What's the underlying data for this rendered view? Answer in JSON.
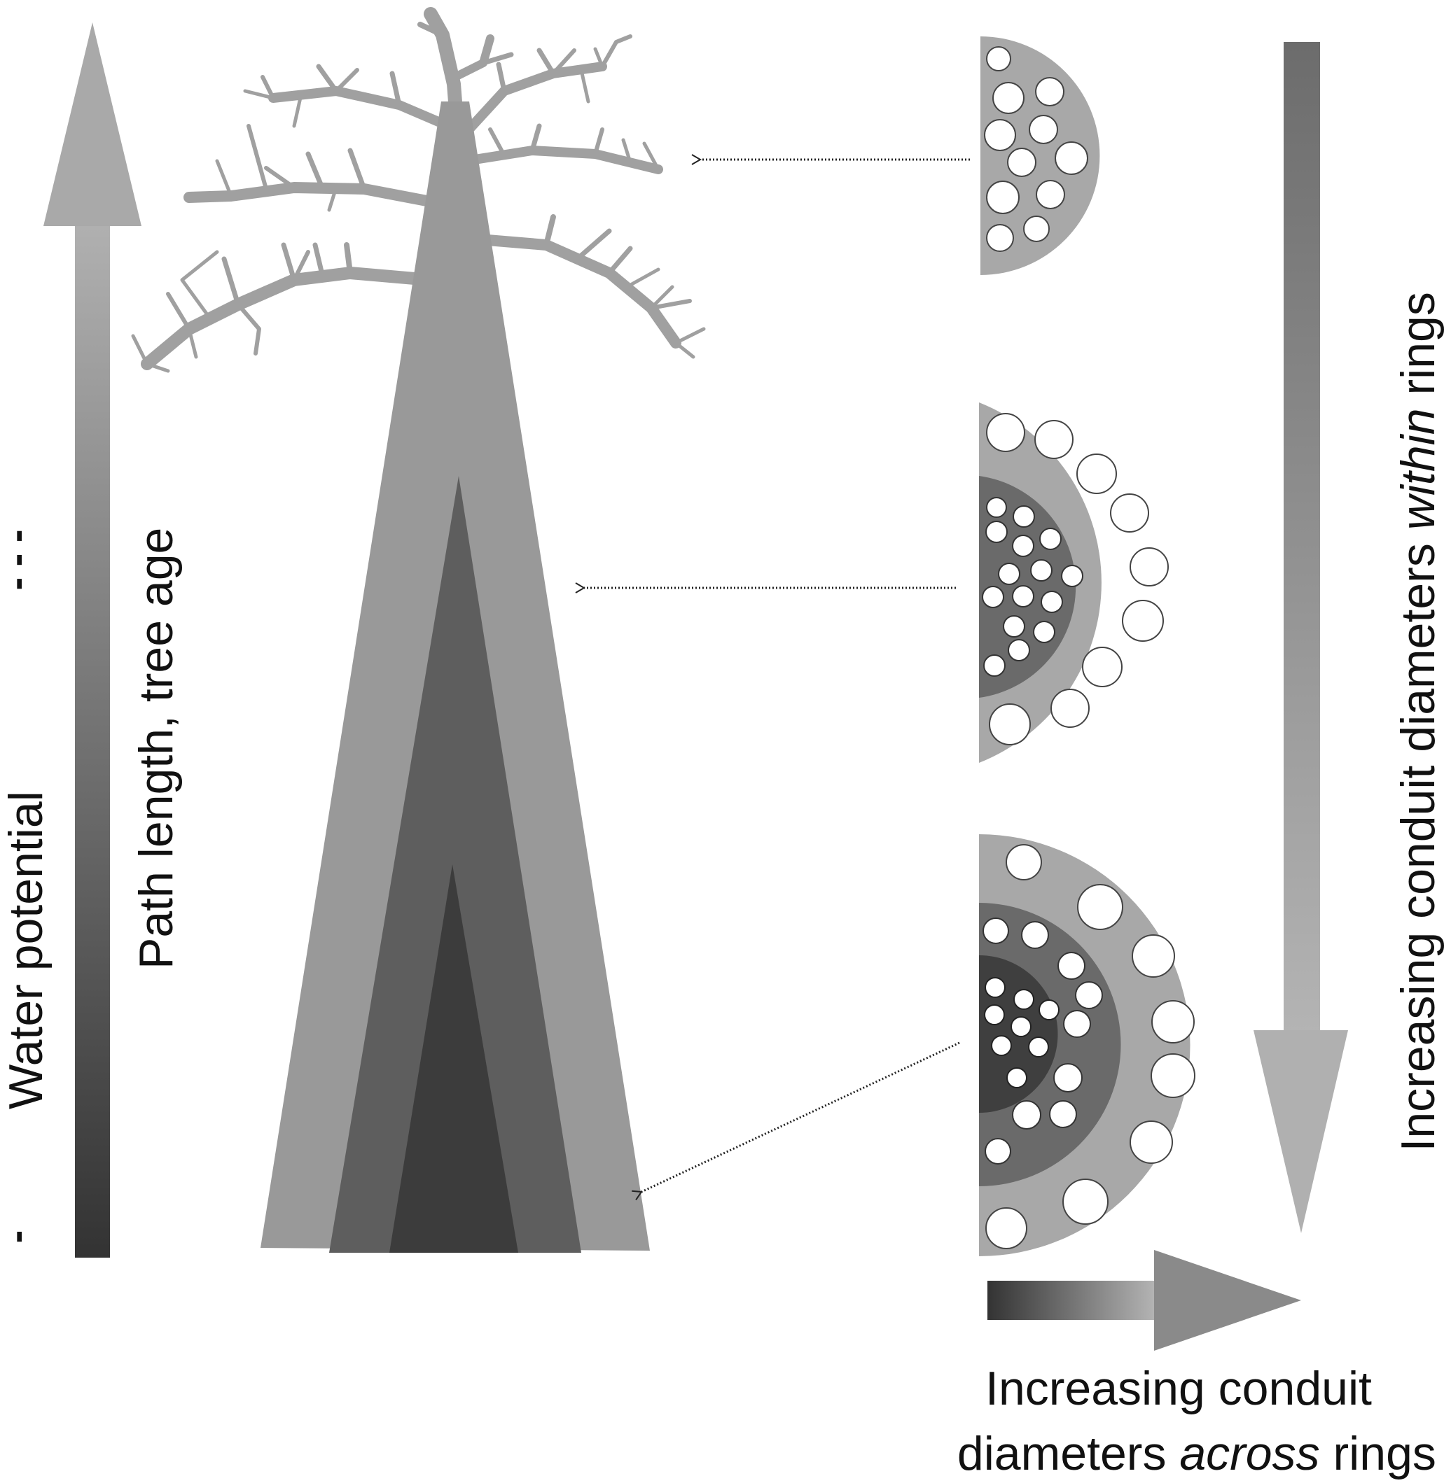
{
  "labels": {
    "water_potential": "Water potential",
    "path_length": "Path length, tree age",
    "minus_top": "- - -",
    "minus_bottom": "-",
    "within_prefix": "Increasing conduit diameters ",
    "within_em": "within",
    "within_suffix": " rings",
    "across_line1": "Increasing conduit",
    "across_line2_prefix": "diameters ",
    "across_line2_em": "across",
    "across_line2_suffix": " rings"
  },
  "colors": {
    "outer_ring": "#a8a8a8",
    "tree_outer": "#999999",
    "middle_ring": "#6a6a6a",
    "tree_middle": "#5e5e5e",
    "inner_ring": "#3f3f3f",
    "tree_inner": "#3c3c3c",
    "branches": "#a0a0a0",
    "conduit": "#ffffff"
  },
  "cross_sections": [
    {
      "position": "crown",
      "rings": 1
    },
    {
      "position": "mid-stem",
      "rings": 2
    },
    {
      "position": "base",
      "rings": 3
    }
  ]
}
